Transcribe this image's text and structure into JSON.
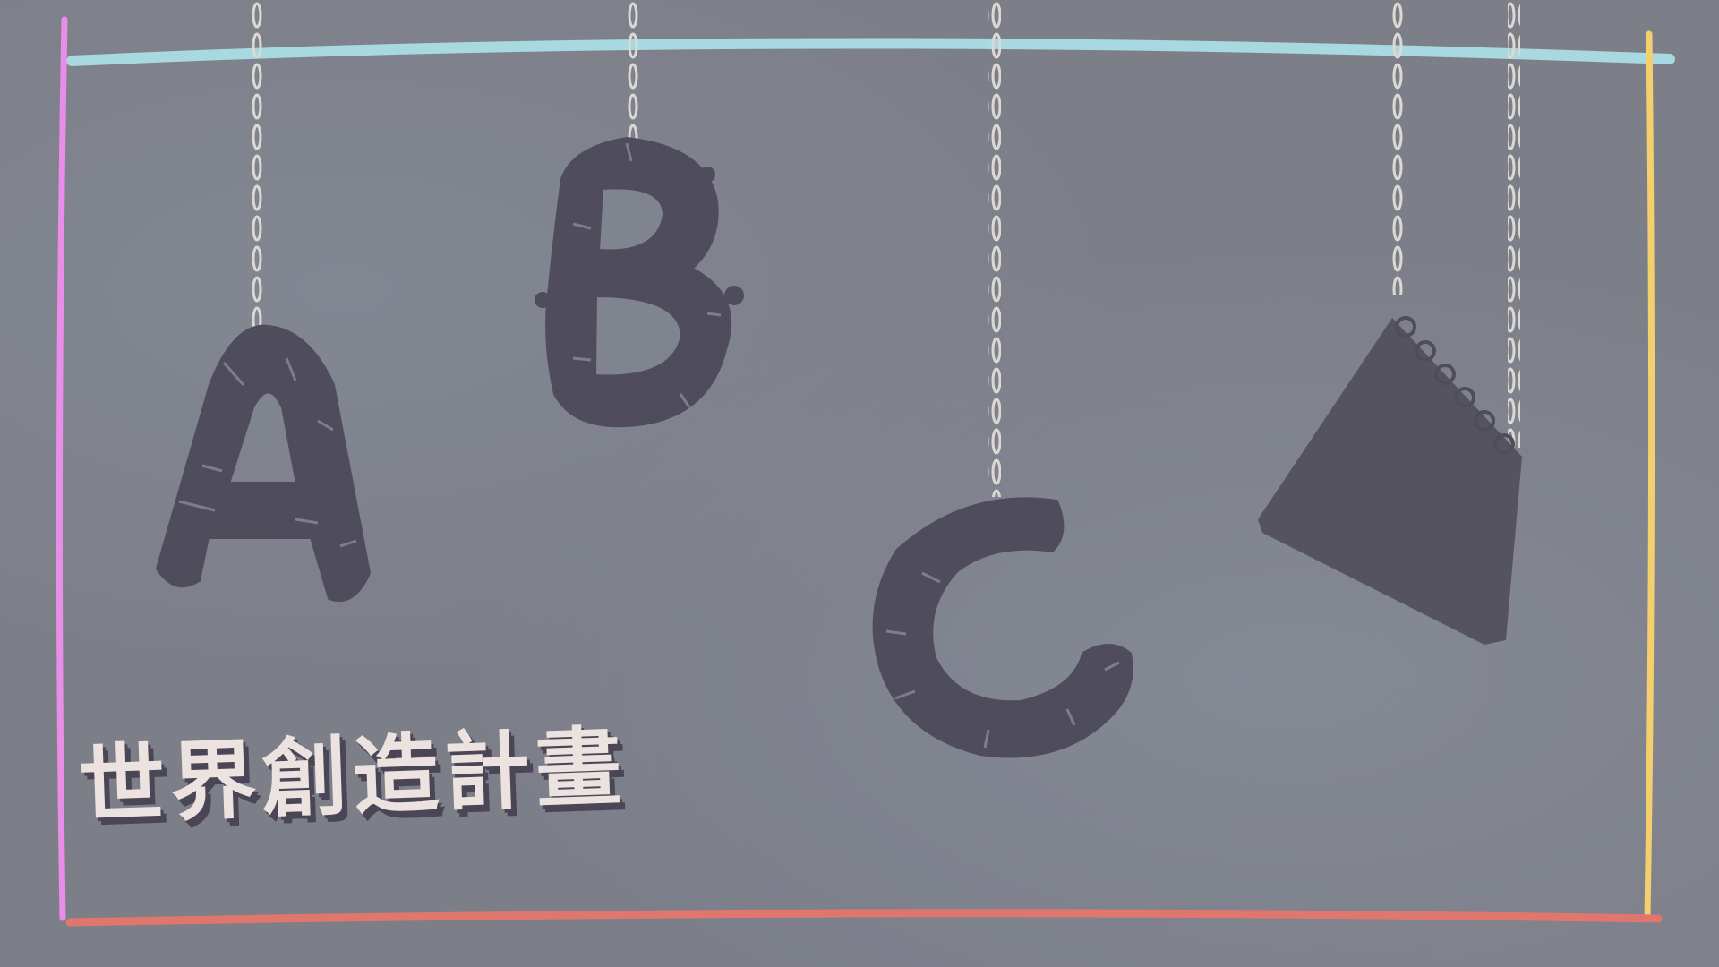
{
  "title": "世界創造計畫",
  "hanging_letters": [
    "A",
    "B",
    "C"
  ],
  "icons": [
    "letter-a-icon",
    "letter-b-icon",
    "letter-c-icon",
    "notebook-icon"
  ],
  "colors": {
    "background": "#7d7f88",
    "shape_fill": "#4f4d5b",
    "string": "#dcd8d4",
    "frame_top": "#a8d8e0",
    "frame_left": "#e98ee8",
    "frame_right": "#f4cf6e",
    "frame_bottom": "#e0776e",
    "title_text": "#ece2e0",
    "title_shadow": "#4b4656"
  }
}
